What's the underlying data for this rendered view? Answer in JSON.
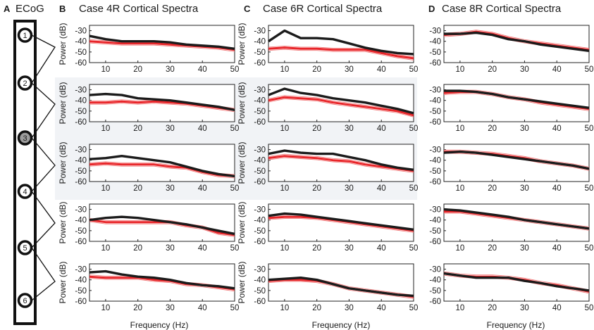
{
  "figure": {
    "ecog_label": "ECoG",
    "electrodes": [
      "1",
      "2",
      "3",
      "4",
      "5",
      "6"
    ],
    "panel_letters": [
      "A",
      "B",
      "C",
      "D"
    ],
    "colors": {
      "black_trace": "#1b1b1b",
      "red_trace": "#e8262a",
      "red_light": "#f27f7f",
      "highlight_bg": "#f1f3f6",
      "electrode3_fill": "#9c9c9c"
    }
  },
  "chart_data": [
    {
      "type": "line",
      "title": "Case 4R Cortical Spectra",
      "xlabel": "Frequency (Hz)",
      "ylabel": "Power (dB)",
      "xlim": [
        5,
        50
      ],
      "ylim": [
        -60,
        -25
      ],
      "xticks": [
        10,
        20,
        30,
        40,
        50
      ],
      "yticks": [
        -30,
        -40,
        -50,
        -60
      ],
      "rows": [
        {
          "electrodes": "1-2",
          "x": [
            5,
            10,
            15,
            20,
            25,
            30,
            35,
            40,
            45,
            50
          ],
          "black": [
            -35,
            -38,
            -40,
            -40,
            -40,
            -41,
            -43,
            -44,
            -45,
            -47
          ],
          "red": [
            -40,
            -41,
            -42,
            -42,
            -42,
            -43,
            -44,
            -45,
            -46,
            -48
          ]
        },
        {
          "electrodes": "2-3",
          "x": [
            5,
            10,
            15,
            20,
            25,
            30,
            35,
            40,
            45,
            50
          ],
          "black": [
            -35,
            -34,
            -35,
            -38,
            -39,
            -40,
            -42,
            -44,
            -46,
            -49
          ],
          "red": [
            -42,
            -42,
            -41,
            -42,
            -41,
            -42,
            -43,
            -45,
            -47,
            -49
          ]
        },
        {
          "electrodes": "3-4",
          "x": [
            5,
            10,
            15,
            20,
            25,
            30,
            35,
            40,
            45,
            50
          ],
          "black": [
            -39,
            -38,
            -36,
            -38,
            -40,
            -42,
            -46,
            -50,
            -53,
            -55
          ],
          "red": [
            -44,
            -43,
            -44,
            -44,
            -44,
            -46,
            -47,
            -51,
            -54,
            -55
          ]
        },
        {
          "electrodes": "4-5",
          "x": [
            5,
            10,
            15,
            20,
            25,
            30,
            35,
            40,
            45,
            50
          ],
          "black": [
            -40,
            -38,
            -37,
            -38,
            -40,
            -42,
            -44,
            -47,
            -50,
            -53
          ],
          "red": [
            -40,
            -42,
            -42,
            -42,
            -42,
            -42,
            -45,
            -47,
            -52,
            -54
          ]
        },
        {
          "electrodes": "5-6",
          "x": [
            5,
            10,
            15,
            20,
            25,
            30,
            35,
            40,
            45,
            50
          ],
          "black": [
            -33,
            -32,
            -35,
            -37,
            -38,
            -40,
            -43,
            -45,
            -46,
            -48
          ],
          "red": [
            -37,
            -38,
            -38,
            -38,
            -40,
            -41,
            -44,
            -45,
            -47,
            -49
          ]
        }
      ]
    },
    {
      "type": "line",
      "title": "Case 6R Cortical Spectra",
      "xlabel": "Frequency (Hz)",
      "ylabel": "Power (dB)",
      "xlim": [
        5,
        50
      ],
      "ylim": [
        -60,
        -25
      ],
      "xticks": [
        10,
        20,
        30,
        40,
        50
      ],
      "yticks": [
        -30,
        -40,
        -50,
        -60
      ],
      "rows": [
        {
          "electrodes": "1-2",
          "x": [
            5,
            10,
            15,
            20,
            25,
            30,
            35,
            40,
            45,
            50
          ],
          "black": [
            -40,
            -30,
            -37,
            -37,
            -38,
            -42,
            -46,
            -49,
            -51,
            -52
          ],
          "red": [
            -47,
            -46,
            -47,
            -47,
            -48,
            -48,
            -48,
            -51,
            -54,
            -56
          ]
        },
        {
          "electrodes": "2-3",
          "x": [
            5,
            10,
            15,
            20,
            25,
            30,
            35,
            40,
            45,
            50
          ],
          "black": [
            -35,
            -29,
            -33,
            -35,
            -38,
            -40,
            -42,
            -45,
            -48,
            -52
          ],
          "red": [
            -40,
            -37,
            -38,
            -39,
            -42,
            -44,
            -46,
            -48,
            -50,
            -54
          ]
        },
        {
          "electrodes": "3-4",
          "x": [
            5,
            10,
            15,
            20,
            25,
            30,
            35,
            40,
            45,
            50
          ],
          "black": [
            -34,
            -31,
            -33,
            -34,
            -34,
            -37,
            -40,
            -44,
            -47,
            -49
          ],
          "red": [
            -38,
            -36,
            -37,
            -38,
            -40,
            -41,
            -44,
            -46,
            -48,
            -50
          ]
        },
        {
          "electrodes": "4-5",
          "x": [
            5,
            10,
            15,
            20,
            25,
            30,
            35,
            40,
            45,
            50
          ],
          "black": [
            -36,
            -34,
            -35,
            -37,
            -39,
            -41,
            -43,
            -45,
            -47,
            -49
          ],
          "red": [
            -38,
            -37,
            -37,
            -38,
            -40,
            -42,
            -44,
            -46,
            -48,
            -50
          ]
        },
        {
          "electrodes": "5-6",
          "x": [
            5,
            10,
            15,
            20,
            25,
            30,
            35,
            40,
            45,
            50
          ],
          "black": [
            -40,
            -39,
            -38,
            -40,
            -44,
            -48,
            -50,
            -52,
            -54,
            -55
          ],
          "red": [
            -41,
            -40,
            -40,
            -41,
            -44,
            -48,
            -50,
            -52,
            -54,
            -56
          ]
        }
      ]
    },
    {
      "type": "line",
      "title": "Case 8R Cortical Spectra",
      "xlabel": "Frequency (Hz)",
      "ylabel": "",
      "xlim": [
        5,
        50
      ],
      "ylim": [
        -60,
        -25
      ],
      "xticks": [
        10,
        20,
        30,
        40,
        50
      ],
      "yticks": [
        -30,
        -40,
        -50,
        -60
      ],
      "rows": [
        {
          "electrodes": "1-2",
          "x": [
            5,
            10,
            15,
            20,
            25,
            30,
            35,
            40,
            45,
            50
          ],
          "black": [
            -33,
            -33,
            -32,
            -34,
            -38,
            -40,
            -43,
            -45,
            -47,
            -49
          ],
          "red": [
            -34,
            -33,
            -31,
            -33,
            -37,
            -40,
            -42,
            -44,
            -46,
            -48
          ]
        },
        {
          "electrodes": "2-3",
          "x": [
            5,
            10,
            15,
            20,
            25,
            30,
            35,
            40,
            45,
            50
          ],
          "black": [
            -31,
            -31,
            -32,
            -34,
            -37,
            -39,
            -41,
            -43,
            -45,
            -47
          ],
          "red": [
            -33,
            -32,
            -32,
            -34,
            -37,
            -39,
            -42,
            -44,
            -46,
            -48
          ]
        },
        {
          "electrodes": "3-4",
          "x": [
            5,
            10,
            15,
            20,
            25,
            30,
            35,
            40,
            45,
            50
          ],
          "black": [
            -33,
            -32,
            -33,
            -35,
            -37,
            -39,
            -41,
            -43,
            -45,
            -48
          ],
          "red": [
            -32,
            -32,
            -33,
            -34,
            -36,
            -38,
            -41,
            -43,
            -45,
            -48
          ]
        },
        {
          "electrodes": "4-5",
          "x": [
            5,
            10,
            15,
            20,
            25,
            30,
            35,
            40,
            45,
            50
          ],
          "black": [
            -30,
            -31,
            -33,
            -35,
            -37,
            -40,
            -42,
            -44,
            -46,
            -48
          ],
          "red": [
            -32,
            -32,
            -34,
            -36,
            -38,
            -40,
            -42,
            -44,
            -46,
            -48
          ]
        },
        {
          "electrodes": "5-6",
          "x": [
            5,
            10,
            15,
            20,
            25,
            30,
            35,
            40,
            45,
            50
          ],
          "black": [
            -34,
            -36,
            -38,
            -38,
            -38,
            -41,
            -43,
            -46,
            -48,
            -50
          ],
          "red": [
            -34,
            -36,
            -37,
            -37,
            -38,
            -40,
            -43,
            -45,
            -48,
            -51
          ]
        }
      ]
    }
  ]
}
